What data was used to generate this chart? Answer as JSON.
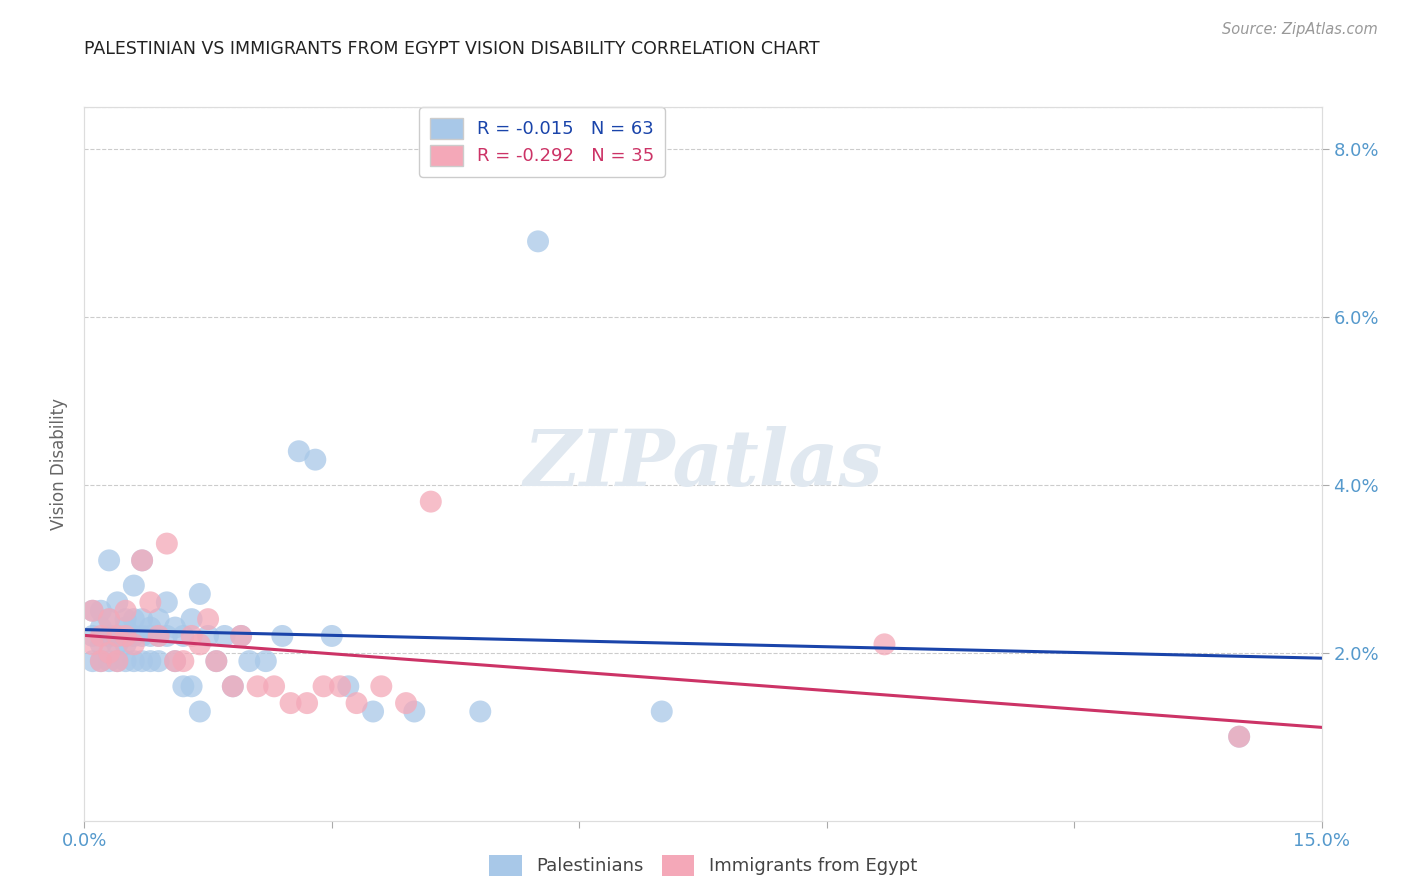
{
  "title": "PALESTINIAN VS IMMIGRANTS FROM EGYPT VISION DISABILITY CORRELATION CHART",
  "source": "Source: ZipAtlas.com",
  "ylabel": "Vision Disability",
  "xlim": [
    0.0,
    0.15
  ],
  "ylim": [
    0.0,
    0.085
  ],
  "grid_color": "#cccccc",
  "background_color": "#ffffff",
  "watermark_text": "ZIPatlas",
  "legend_R1": "R = -0.015",
  "legend_N1": "N = 63",
  "legend_R2": "R = -0.292",
  "legend_N2": "N = 35",
  "blue_color": "#A8C8E8",
  "pink_color": "#F4A8B8",
  "line_blue": "#1A44AA",
  "line_pink": "#CC3366",
  "title_color": "#222222",
  "axis_label_color": "#5599CC",
  "palestinians_x": [
    0.001,
    0.001,
    0.001,
    0.002,
    0.002,
    0.002,
    0.002,
    0.003,
    0.003,
    0.003,
    0.003,
    0.003,
    0.004,
    0.004,
    0.004,
    0.004,
    0.005,
    0.005,
    0.005,
    0.005,
    0.005,
    0.006,
    0.006,
    0.006,
    0.006,
    0.007,
    0.007,
    0.007,
    0.007,
    0.008,
    0.008,
    0.008,
    0.009,
    0.009,
    0.009,
    0.01,
    0.01,
    0.011,
    0.011,
    0.012,
    0.012,
    0.013,
    0.013,
    0.014,
    0.014,
    0.015,
    0.016,
    0.017,
    0.018,
    0.019,
    0.02,
    0.022,
    0.024,
    0.026,
    0.028,
    0.03,
    0.032,
    0.035,
    0.04,
    0.048,
    0.055,
    0.07,
    0.14
  ],
  "palestinians_y": [
    0.022,
    0.019,
    0.025,
    0.021,
    0.023,
    0.019,
    0.025,
    0.022,
    0.024,
    0.019,
    0.022,
    0.031,
    0.021,
    0.019,
    0.022,
    0.026,
    0.022,
    0.019,
    0.023,
    0.021,
    0.024,
    0.022,
    0.019,
    0.024,
    0.028,
    0.019,
    0.022,
    0.024,
    0.031,
    0.019,
    0.022,
    0.023,
    0.019,
    0.022,
    0.024,
    0.022,
    0.026,
    0.019,
    0.023,
    0.016,
    0.022,
    0.016,
    0.024,
    0.013,
    0.027,
    0.022,
    0.019,
    0.022,
    0.016,
    0.022,
    0.019,
    0.019,
    0.022,
    0.044,
    0.043,
    0.022,
    0.016,
    0.013,
    0.013,
    0.013,
    0.069,
    0.013,
    0.01
  ],
  "egypt_x": [
    0.001,
    0.001,
    0.002,
    0.002,
    0.003,
    0.003,
    0.004,
    0.004,
    0.005,
    0.005,
    0.006,
    0.007,
    0.008,
    0.009,
    0.01,
    0.011,
    0.012,
    0.013,
    0.014,
    0.015,
    0.016,
    0.018,
    0.019,
    0.021,
    0.023,
    0.025,
    0.027,
    0.029,
    0.031,
    0.033,
    0.036,
    0.039,
    0.042,
    0.097,
    0.14
  ],
  "egypt_y": [
    0.021,
    0.025,
    0.022,
    0.019,
    0.024,
    0.02,
    0.022,
    0.019,
    0.022,
    0.025,
    0.021,
    0.031,
    0.026,
    0.022,
    0.033,
    0.019,
    0.019,
    0.022,
    0.021,
    0.024,
    0.019,
    0.016,
    0.022,
    0.016,
    0.016,
    0.014,
    0.014,
    0.016,
    0.016,
    0.014,
    0.016,
    0.014,
    0.038,
    0.021,
    0.01
  ]
}
